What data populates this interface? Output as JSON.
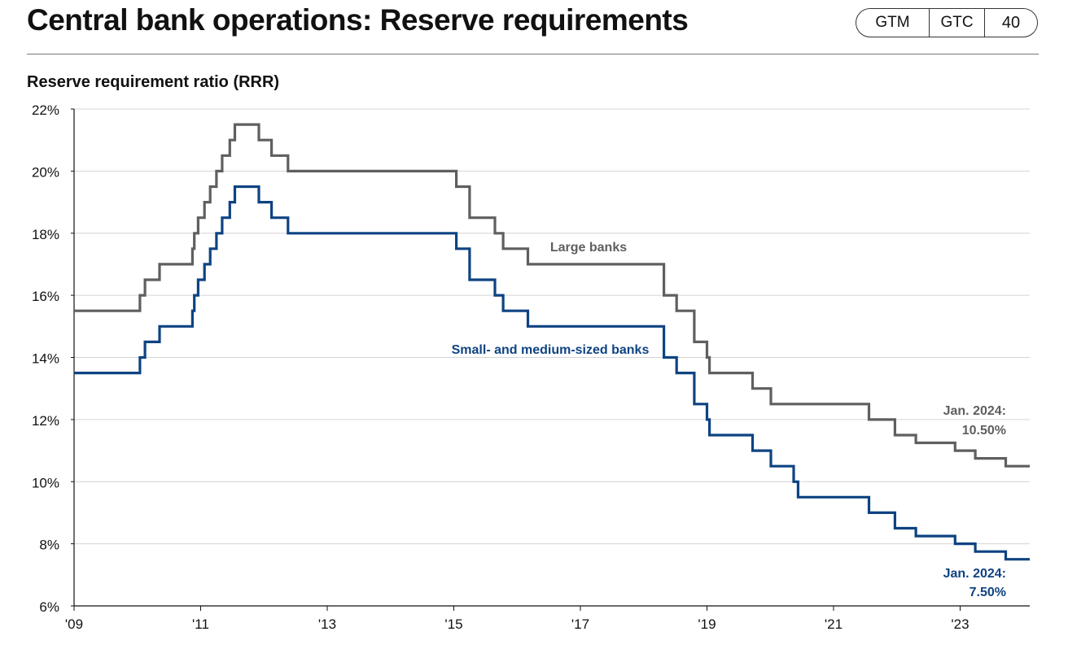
{
  "header": {
    "title": "Central bank operations: Reserve requirements",
    "badges": [
      "GTM",
      "GTC",
      "40"
    ]
  },
  "chart_data": {
    "type": "line",
    "title": "Reserve requirement ratio (RRR)",
    "xlabel": "",
    "ylabel": "",
    "xlim": [
      2009,
      2024.1
    ],
    "ylim": [
      6,
      22
    ],
    "x_ticks": [
      2009,
      2011,
      2013,
      2015,
      2017,
      2019,
      2021,
      2023
    ],
    "x_tick_labels": [
      "'09",
      "'11",
      "'13",
      "'15",
      "'17",
      "'19",
      "'21",
      "'23"
    ],
    "y_ticks": [
      6,
      8,
      10,
      12,
      14,
      16,
      18,
      20,
      22
    ],
    "y_tick_labels": [
      "6%",
      "8%",
      "10%",
      "12%",
      "14%",
      "16%",
      "18%",
      "20%",
      "22%"
    ],
    "grid": true,
    "step": true,
    "series": [
      {
        "name": "Large banks",
        "color": "#5f5f5f",
        "points": [
          [
            2009.0,
            15.5
          ],
          [
            2010.04,
            16.0
          ],
          [
            2010.12,
            16.5
          ],
          [
            2010.35,
            17.0
          ],
          [
            2010.87,
            17.5
          ],
          [
            2010.9,
            18.0
          ],
          [
            2010.96,
            18.5
          ],
          [
            2011.06,
            19.0
          ],
          [
            2011.15,
            19.5
          ],
          [
            2011.25,
            20.0
          ],
          [
            2011.34,
            20.5
          ],
          [
            2011.46,
            21.0
          ],
          [
            2011.54,
            21.5
          ],
          [
            2011.92,
            21.0
          ],
          [
            2012.12,
            20.5
          ],
          [
            2012.38,
            20.0
          ],
          [
            2015.04,
            19.5
          ],
          [
            2015.25,
            18.5
          ],
          [
            2015.65,
            18.0
          ],
          [
            2015.78,
            17.5
          ],
          [
            2016.17,
            17.0
          ],
          [
            2018.32,
            16.0
          ],
          [
            2018.52,
            15.5
          ],
          [
            2018.8,
            14.5
          ],
          [
            2019.0,
            14.0
          ],
          [
            2019.04,
            13.5
          ],
          [
            2019.72,
            13.0
          ],
          [
            2020.01,
            12.5
          ],
          [
            2021.56,
            12.0
          ],
          [
            2021.97,
            11.5
          ],
          [
            2022.3,
            11.25
          ],
          [
            2022.92,
            11.0
          ],
          [
            2023.24,
            10.75
          ],
          [
            2023.72,
            10.5
          ],
          [
            2024.1,
            10.5
          ]
        ]
      },
      {
        "name": "Small- and medium-sized banks",
        "color": "#0e4382",
        "points": [
          [
            2009.0,
            13.5
          ],
          [
            2010.04,
            14.0
          ],
          [
            2010.12,
            14.5
          ],
          [
            2010.35,
            15.0
          ],
          [
            2010.87,
            15.5
          ],
          [
            2010.9,
            16.0
          ],
          [
            2010.96,
            16.5
          ],
          [
            2011.06,
            17.0
          ],
          [
            2011.15,
            17.5
          ],
          [
            2011.25,
            18.0
          ],
          [
            2011.34,
            18.5
          ],
          [
            2011.46,
            19.0
          ],
          [
            2011.54,
            19.5
          ],
          [
            2011.92,
            19.0
          ],
          [
            2012.12,
            18.5
          ],
          [
            2012.38,
            18.0
          ],
          [
            2015.04,
            17.5
          ],
          [
            2015.25,
            16.5
          ],
          [
            2015.65,
            16.0
          ],
          [
            2015.78,
            15.5
          ],
          [
            2016.17,
            15.0
          ],
          [
            2018.32,
            14.0
          ],
          [
            2018.52,
            13.5
          ],
          [
            2018.8,
            12.5
          ],
          [
            2019.0,
            12.0
          ],
          [
            2019.04,
            11.5
          ],
          [
            2019.72,
            11.0
          ],
          [
            2020.01,
            10.5
          ],
          [
            2020.37,
            10.0
          ],
          [
            2020.44,
            9.5
          ],
          [
            2021.56,
            9.0
          ],
          [
            2021.97,
            8.5
          ],
          [
            2022.3,
            8.25
          ],
          [
            2022.92,
            8.0
          ],
          [
            2023.24,
            7.75
          ],
          [
            2023.72,
            7.5
          ],
          [
            2024.1,
            7.5
          ]
        ]
      }
    ],
    "annotations": [
      {
        "text": "Large banks"
      },
      {
        "text": "Small- and medium-sized banks"
      },
      {
        "text": "Jan. 2024:",
        "text2": "10.50%"
      },
      {
        "text": "Jan. 2024:",
        "text2": "7.50%"
      }
    ]
  }
}
